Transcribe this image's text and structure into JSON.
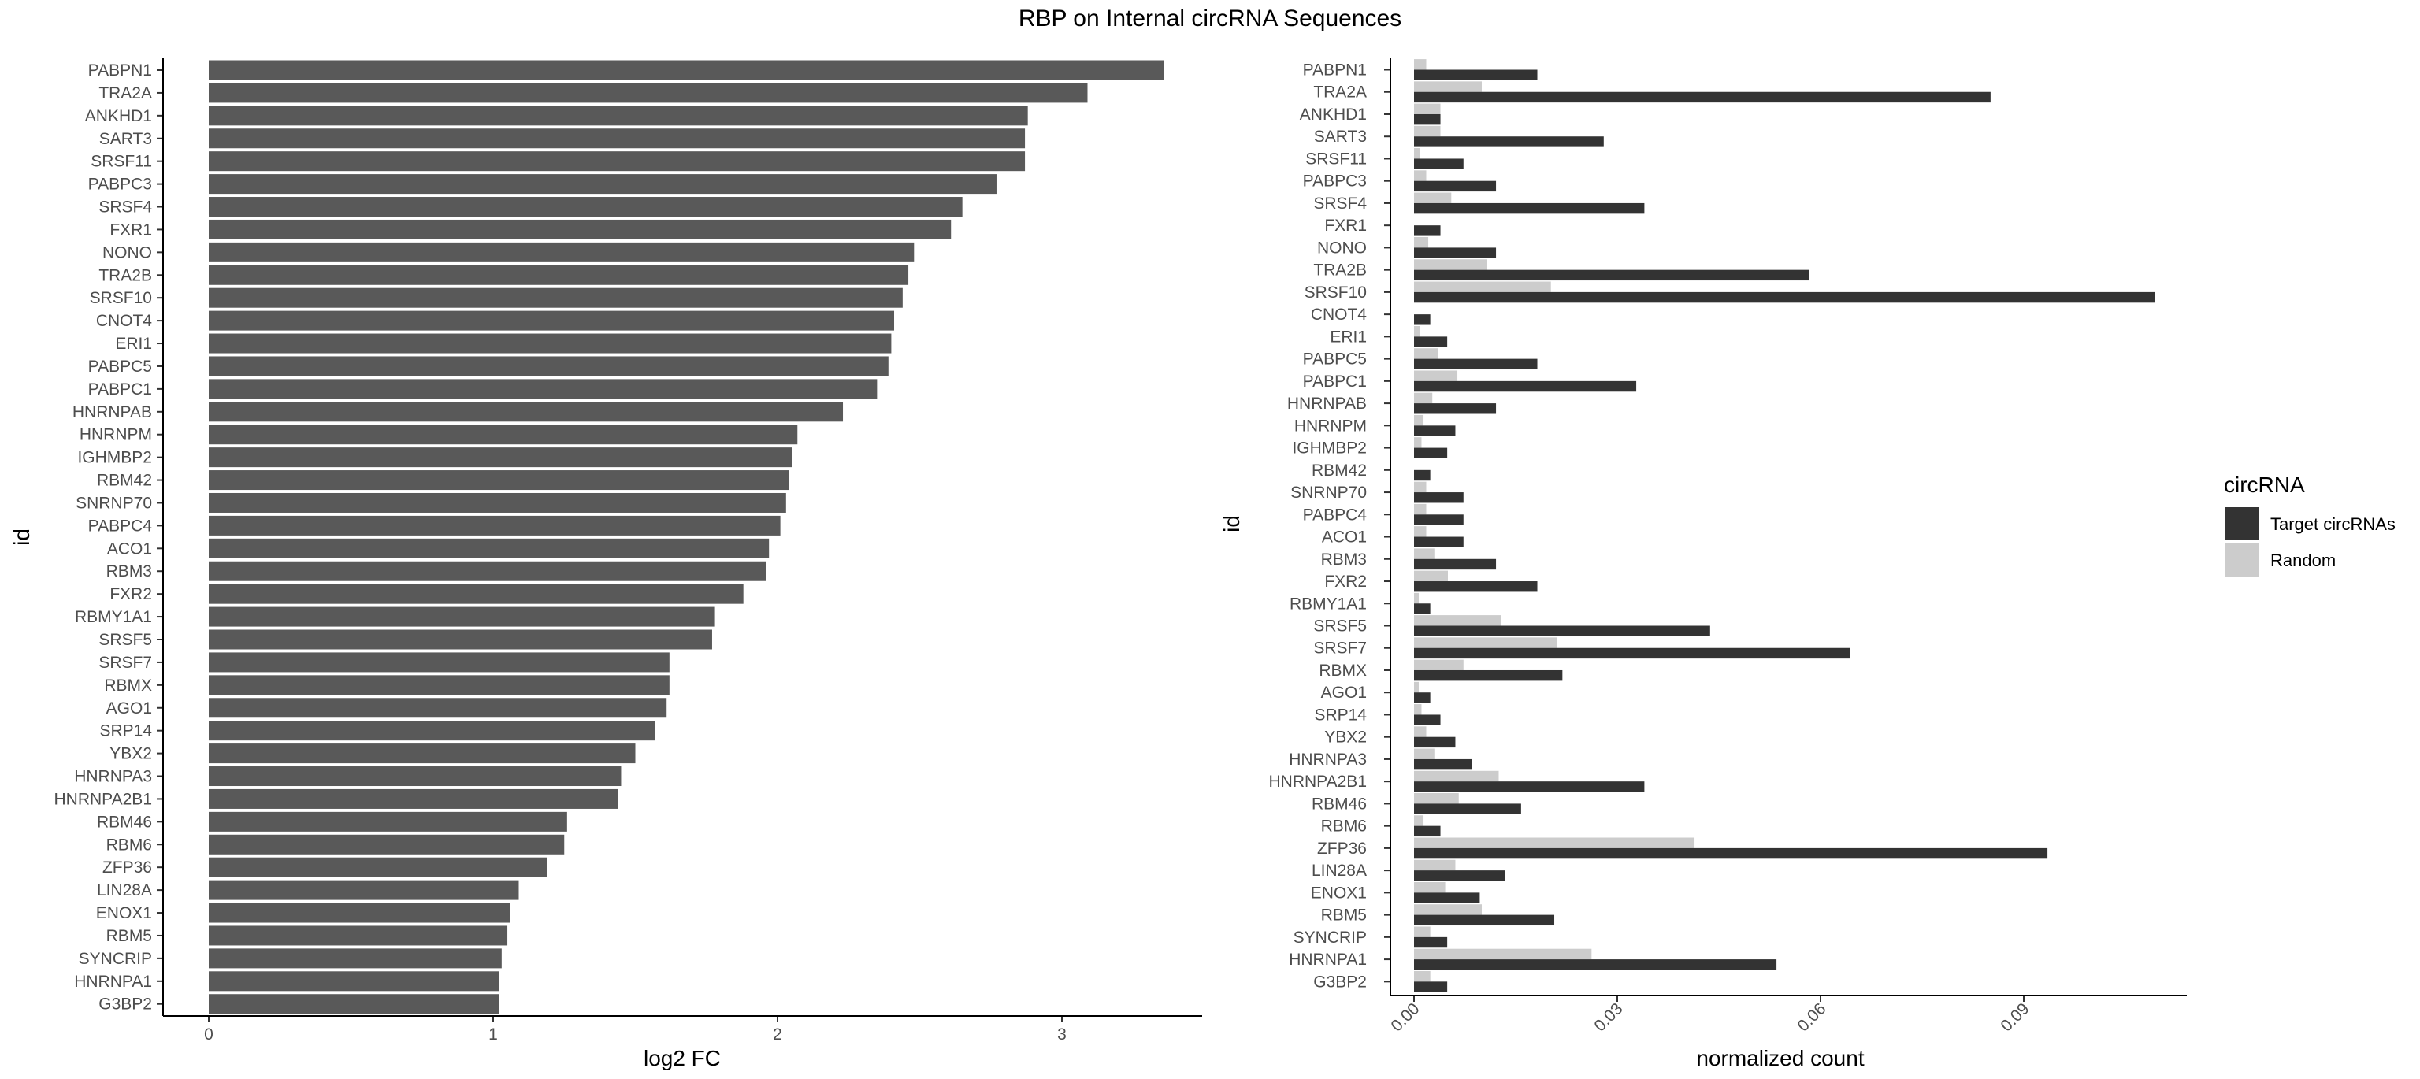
{
  "figure_title": "RBP on Internal circRNA Sequences",
  "chart_data": [
    {
      "type": "bar",
      "orientation": "horizontal",
      "title": "",
      "xlabel": "log2 FC",
      "ylabel": "id",
      "xlim": [
        0,
        3.5
      ],
      "xticks": [
        "0",
        "1",
        "2",
        "3"
      ],
      "grid": false,
      "color": "#595959",
      "categories": [
        "PABPN1",
        "TRA2A",
        "ANKHD1",
        "SART3",
        "SRSF11",
        "PABPC3",
        "SRSF4",
        "FXR1",
        "NONO",
        "TRA2B",
        "SRSF10",
        "CNOT4",
        "ERI1",
        "PABPC5",
        "PABPC1",
        "HNRNPAB",
        "HNRNPM",
        "IGHMBP2",
        "RBM42",
        "SNRNP70",
        "PABPC4",
        "ACO1",
        "RBM3",
        "FXR2",
        "RBMY1A1",
        "SRSF5",
        "SRSF7",
        "RBMX",
        "AGO1",
        "SRP14",
        "YBX2",
        "HNRNPA3",
        "HNRNPA2B1",
        "RBM46",
        "RBM6",
        "ZFP36",
        "LIN28A",
        "ENOX1",
        "RBM5",
        "SYNCRIP",
        "HNRNPA1",
        "G3BP2"
      ],
      "values": [
        3.36,
        3.09,
        2.88,
        2.87,
        2.87,
        2.77,
        2.65,
        2.61,
        2.48,
        2.46,
        2.44,
        2.41,
        2.4,
        2.39,
        2.35,
        2.23,
        2.07,
        2.05,
        2.04,
        2.03,
        2.01,
        1.97,
        1.96,
        1.88,
        1.78,
        1.77,
        1.62,
        1.62,
        1.61,
        1.57,
        1.5,
        1.45,
        1.44,
        1.26,
        1.25,
        1.19,
        1.09,
        1.06,
        1.05,
        1.03,
        1.02,
        1.02
      ]
    },
    {
      "type": "bar",
      "orientation": "horizontal",
      "title": "",
      "xlabel": "normalized count",
      "ylabel": "id",
      "xlim": [
        0,
        0.114
      ],
      "xticks": [
        "0.00",
        "0.03",
        "0.06",
        "0.09"
      ],
      "grid": false,
      "categories": [
        "PABPN1",
        "TRA2A",
        "ANKHD1",
        "SART3",
        "SRSF11",
        "PABPC3",
        "SRSF4",
        "FXR1",
        "NONO",
        "TRA2B",
        "SRSF10",
        "CNOT4",
        "ERI1",
        "PABPC5",
        "PABPC1",
        "HNRNPAB",
        "HNRNPM",
        "IGHMBP2",
        "RBM42",
        "SNRNP70",
        "PABPC4",
        "ACO1",
        "RBM3",
        "FXR2",
        "RBMY1A1",
        "SRSF5",
        "SRSF7",
        "RBMX",
        "AGO1",
        "SRP14",
        "YBX2",
        "HNRNPA3",
        "HNRNPA2B1",
        "RBM46",
        "RBM6",
        "ZFP36",
        "LIN28A",
        "ENOX1",
        "RBM5",
        "SYNCRIP",
        "HNRNPA1",
        "G3BP2"
      ],
      "legend": {
        "title": "circRNA",
        "placement": "right"
      },
      "series": [
        {
          "name": "Target circRNAs",
          "color": "#333333",
          "values": [
            0.0182,
            0.0851,
            0.0039,
            0.028,
            0.0073,
            0.0121,
            0.034,
            0.0039,
            0.0121,
            0.0583,
            0.1094,
            0.0024,
            0.0049,
            0.0182,
            0.0328,
            0.0121,
            0.0061,
            0.0049,
            0.0024,
            0.0073,
            0.0073,
            0.0073,
            0.0121,
            0.0182,
            0.0024,
            0.0437,
            0.0644,
            0.0219,
            0.0024,
            0.0039,
            0.0061,
            0.0085,
            0.034,
            0.0158,
            0.0039,
            0.0935,
            0.0134,
            0.0097,
            0.0207,
            0.0049,
            0.0535,
            0.0049
          ]
        },
        {
          "name": "Random",
          "color": "#cccccc",
          "values": [
            0.0018,
            0.01,
            0.0039,
            0.0039,
            0.0009,
            0.0018,
            0.0055,
            0.0,
            0.0021,
            0.0107,
            0.0202,
            0.0,
            0.0009,
            0.0036,
            0.0064,
            0.0027,
            0.0014,
            0.0011,
            0.0,
            0.0018,
            0.0018,
            0.0018,
            0.003,
            0.005,
            0.0007,
            0.0128,
            0.0211,
            0.0073,
            0.0007,
            0.0011,
            0.0018,
            0.003,
            0.0125,
            0.0066,
            0.0014,
            0.0414,
            0.0061,
            0.0046,
            0.01,
            0.0024,
            0.0262,
            0.0024
          ]
        }
      ]
    }
  ]
}
